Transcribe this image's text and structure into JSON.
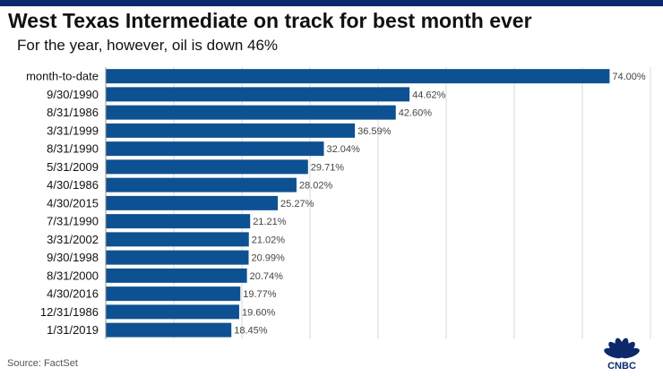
{
  "header": {
    "title": "West Texas Intermediate on track for best month ever",
    "subtitle": "For the year, however, oil is down 46%"
  },
  "footer": {
    "source": "Source: FactSet"
  },
  "logo": {
    "text": "CNBC",
    "colors": [
      "#ffc82c",
      "#f47b20",
      "#e3242b",
      "#6460aa",
      "#0089d0",
      "#00a650"
    ]
  },
  "colors": {
    "bar": "#0e5192",
    "grid": "#d9d9d9",
    "top_rule": "#0c2a6b"
  },
  "chart_data": {
    "type": "bar",
    "orientation": "horizontal",
    "title": "West Texas Intermediate on track for best month ever",
    "subtitle": "For the year, however, oil is down 46%",
    "categories": [
      "month-to-date",
      "9/30/1990",
      "8/31/1986",
      "3/31/1999",
      "8/31/1990",
      "5/31/2009",
      "4/30/1986",
      "4/30/2015",
      "7/31/1990",
      "3/31/2002",
      "9/30/1998",
      "8/31/2000",
      "4/30/2016",
      "12/31/1986",
      "1/31/2019"
    ],
    "values": [
      74.0,
      44.62,
      42.6,
      36.59,
      32.04,
      29.71,
      28.02,
      25.27,
      21.21,
      21.02,
      20.99,
      20.74,
      19.77,
      19.6,
      18.45
    ],
    "value_labels": [
      "74.00%",
      "44.62%",
      "42.60%",
      "36.59%",
      "32.04%",
      "29.71%",
      "28.02%",
      "25.27%",
      "21.21%",
      "21.02%",
      "20.99%",
      "20.74%",
      "19.77%",
      "19.60%",
      "18.45%"
    ],
    "xlim": [
      0,
      80
    ],
    "grid": true,
    "legend": "none"
  }
}
